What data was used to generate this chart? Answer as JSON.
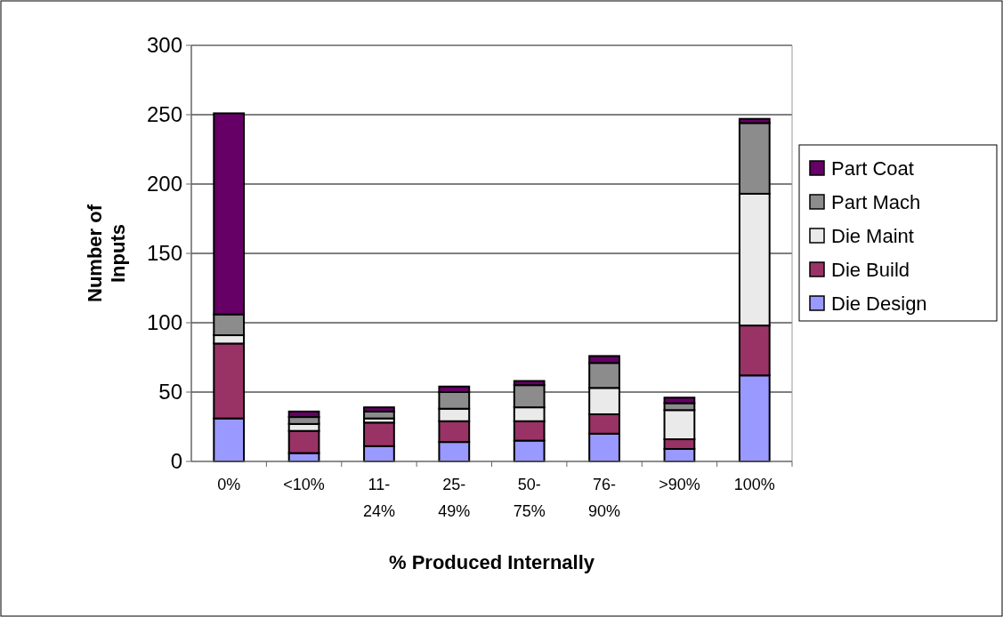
{
  "chart_data": {
    "type": "bar",
    "stacked": true,
    "xlabel": "% Produced Internally",
    "ylabel": "Number of Inputs",
    "categories": [
      "0%",
      "<10%",
      "11-24%",
      "25-49%",
      "50-75%",
      "76-90%",
      ">90%",
      "100%"
    ],
    "series": [
      {
        "name": "Die Design",
        "color": "#9999ff",
        "values": [
          31,
          6,
          11,
          14,
          15,
          20,
          9,
          62
        ]
      },
      {
        "name": "Die Build",
        "color": "#993366",
        "values": [
          54,
          16,
          17,
          15,
          14,
          14,
          7,
          36
        ]
      },
      {
        "name": "Die Maint",
        "color": "#eaeaea",
        "values": [
          6,
          5,
          3,
          9,
          10,
          19,
          21,
          95
        ]
      },
      {
        "name": "Part Mach",
        "color": "#8c8c8c",
        "values": [
          15,
          5,
          5,
          12,
          16,
          18,
          5,
          51
        ]
      },
      {
        "name": "Part Coat",
        "color": "#660066",
        "values": [
          145,
          4,
          3,
          4,
          3,
          5,
          4,
          3
        ]
      }
    ],
    "ylim": [
      0,
      300
    ],
    "yticks": [
      0,
      50,
      100,
      150,
      200,
      250,
      300
    ],
    "grid": "y",
    "legend": "right"
  }
}
